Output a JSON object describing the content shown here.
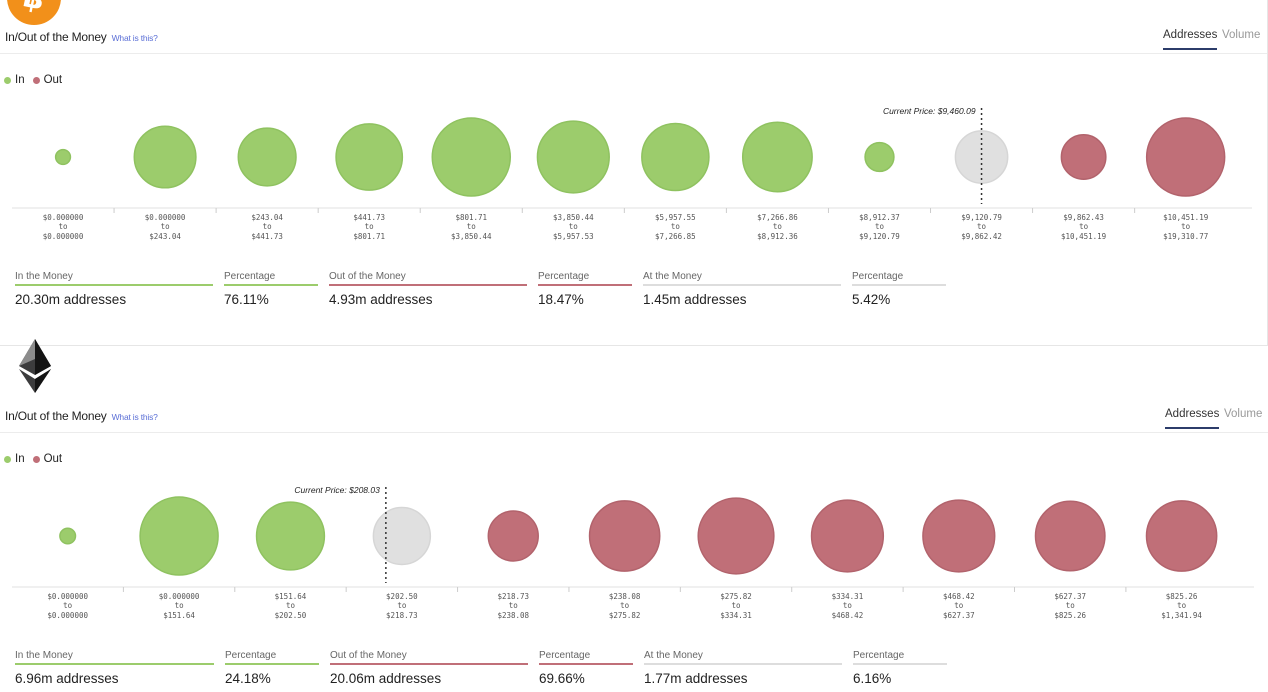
{
  "panels": [
    {
      "coin": "bitcoin",
      "logo_icon": "bitcoin-logo-icon",
      "title": "In/Out of the Money",
      "help_link": "What is this?",
      "tabs": [
        {
          "label": "Addresses",
          "active": true
        },
        {
          "label": "Volume",
          "active": false
        }
      ],
      "legend": {
        "in": "In",
        "out": "Out"
      },
      "colors": {
        "in": "#9ccc6c",
        "out": "#c06f78",
        "at": "#e0e0e0"
      },
      "current_price_label": "Current Price: $9,460.09",
      "stats": [
        {
          "label": "In the Money",
          "value": "20.30m addresses",
          "color": "#9ccc6c"
        },
        {
          "label": "Percentage",
          "value": "76.11%",
          "color": "#9ccc6c"
        },
        {
          "label": "Out of the Money",
          "value": "4.93m addresses",
          "color": "#c06f78"
        },
        {
          "label": "Percentage",
          "value": "18.47%",
          "color": "#c06f78"
        },
        {
          "label": "At the Money",
          "value": "1.45m addresses",
          "color": "#dddddd"
        },
        {
          "label": "Percentage",
          "value": "5.42%",
          "color": "#dddddd"
        }
      ]
    },
    {
      "coin": "ethereum",
      "logo_icon": "ethereum-logo-icon",
      "title": "In/Out of the Money",
      "help_link": "What is this?",
      "tabs": [
        {
          "label": "Addresses",
          "active": true
        },
        {
          "label": "Volume",
          "active": false
        }
      ],
      "legend": {
        "in": "In",
        "out": "Out"
      },
      "colors": {
        "in": "#9ccc6c",
        "out": "#c06f78",
        "at": "#e0e0e0"
      },
      "current_price_label": "Current Price: $208.03",
      "stats": [
        {
          "label": "In the Money",
          "value": "6.96m addresses",
          "color": "#9ccc6c"
        },
        {
          "label": "Percentage",
          "value": "24.18%",
          "color": "#9ccc6c"
        },
        {
          "label": "Out of the Money",
          "value": "20.06m addresses",
          "color": "#c06f78"
        },
        {
          "label": "Percentage",
          "value": "69.66%",
          "color": "#c06f78"
        },
        {
          "label": "At the Money",
          "value": "1.77m addresses",
          "color": "#dddddd"
        },
        {
          "label": "Percentage",
          "value": "6.16%",
          "color": "#dddddd"
        }
      ]
    }
  ],
  "chart_data": [
    {
      "type": "bubble",
      "current_price": 9460.09,
      "categories": [
        {
          "from": "$0.000000",
          "to": "$0.000000",
          "status": "in",
          "relative_size": 0.19
        },
        {
          "from": "$0.000000",
          "to": "$243.04",
          "status": "in",
          "relative_size": 0.79
        },
        {
          "from": "$243.04",
          "to": "$441.73",
          "status": "in",
          "relative_size": 0.74
        },
        {
          "from": "$441.73",
          "to": "$801.71",
          "status": "in",
          "relative_size": 0.85
        },
        {
          "from": "$801.71",
          "to": "$3,850.44",
          "status": "in",
          "relative_size": 1.0
        },
        {
          "from": "$3,850.44",
          "to": "$5,957.53",
          "status": "in",
          "relative_size": 0.92
        },
        {
          "from": "$5,957.55",
          "to": "$7,266.85",
          "status": "in",
          "relative_size": 0.86
        },
        {
          "from": "$7,266.86",
          "to": "$8,912.36",
          "status": "in",
          "relative_size": 0.89
        },
        {
          "from": "$8,912.37",
          "to": "$9,120.79",
          "status": "in",
          "relative_size": 0.37
        },
        {
          "from": "$9,120.79",
          "to": "$9,862.42",
          "status": "at",
          "relative_size": 0.67
        },
        {
          "from": "$9,862.43",
          "to": "$10,451.19",
          "status": "out",
          "relative_size": 0.57
        },
        {
          "from": "$10,451.19",
          "to": "$19,310.77",
          "status": "out",
          "relative_size": 1.0
        }
      ]
    },
    {
      "type": "bubble",
      "current_price": 208.03,
      "categories": [
        {
          "from": "$0.000000",
          "to": "$0.000000",
          "status": "in",
          "relative_size": 0.2
        },
        {
          "from": "$0.000000",
          "to": "$151.64",
          "status": "in",
          "relative_size": 1.0
        },
        {
          "from": "$151.64",
          "to": "$202.50",
          "status": "in",
          "relative_size": 0.87
        },
        {
          "from": "$202.50",
          "to": "$218.73",
          "status": "at",
          "relative_size": 0.73
        },
        {
          "from": "$218.73",
          "to": "$238.08",
          "status": "out",
          "relative_size": 0.64
        },
        {
          "from": "$238.08",
          "to": "$275.82",
          "status": "out",
          "relative_size": 0.9
        },
        {
          "from": "$275.82",
          "to": "$334.31",
          "status": "out",
          "relative_size": 0.97
        },
        {
          "from": "$334.31",
          "to": "$468.42",
          "status": "out",
          "relative_size": 0.92
        },
        {
          "from": "$468.42",
          "to": "$627.37",
          "status": "out",
          "relative_size": 0.92
        },
        {
          "from": "$627.37",
          "to": "$825.26",
          "status": "out",
          "relative_size": 0.89
        },
        {
          "from": "$825.26",
          "to": "$1,341.94",
          "status": "out",
          "relative_size": 0.9
        }
      ]
    }
  ]
}
